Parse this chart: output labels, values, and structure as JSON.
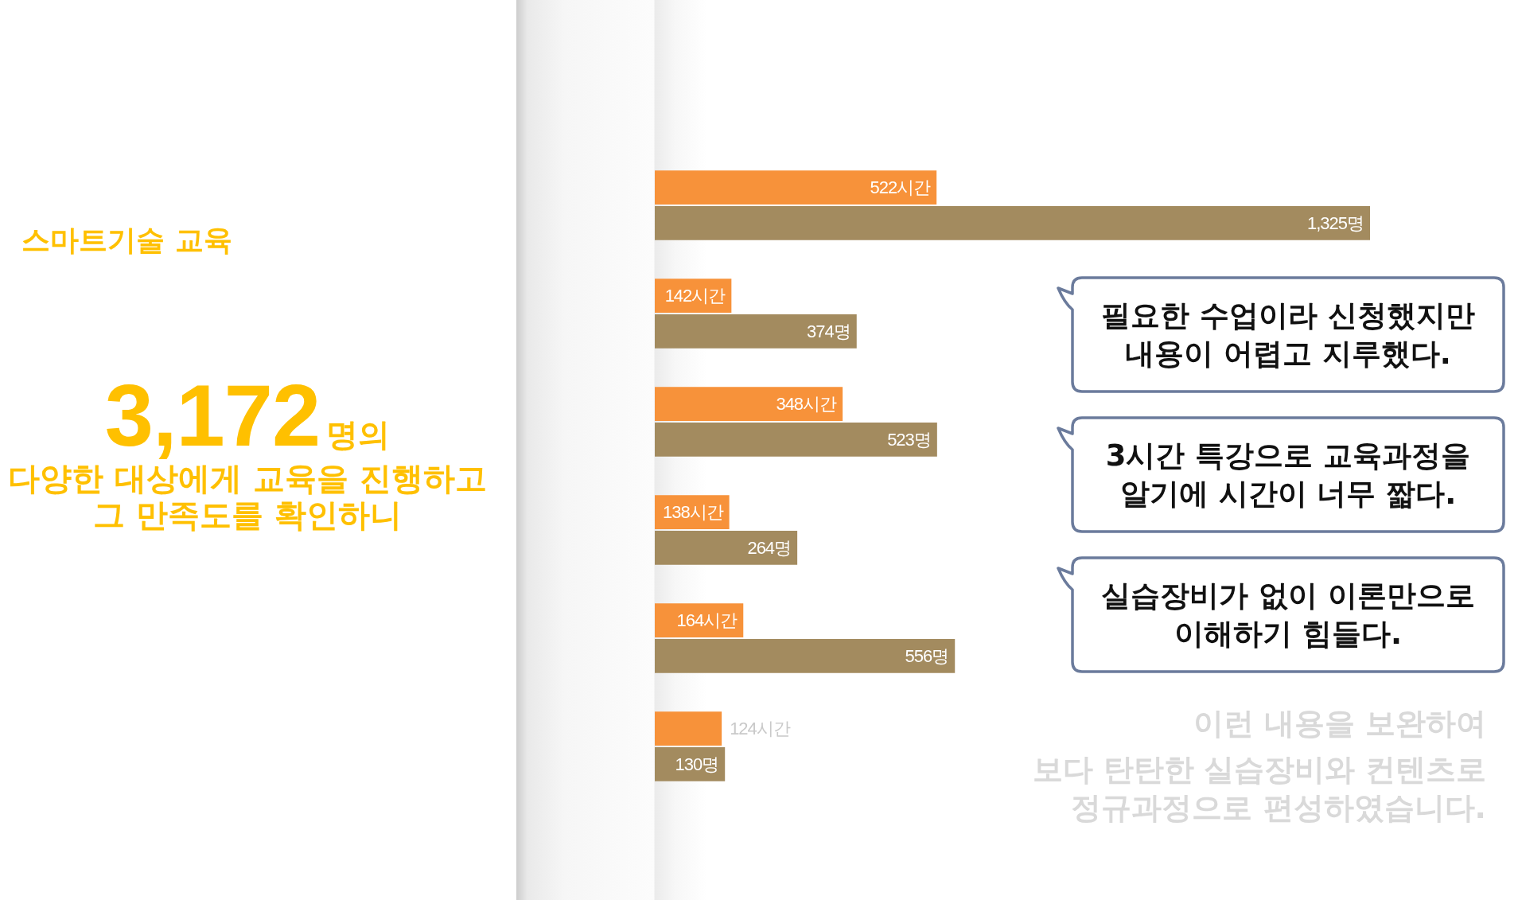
{
  "chart_data": {
    "type": "bar",
    "orientation": "horizontal",
    "title": "스마트기술 교육",
    "categories": [
      null,
      null,
      null,
      null,
      null,
      null
    ],
    "series": [
      {
        "color": "#f7923a",
        "values": [
          522,
          142,
          348,
          138,
          164,
          124
        ],
        "value_labels": [
          "522시간",
          "142시간",
          "348시간",
          "138시간",
          "164시간",
          "124시간"
        ]
      },
      {
        "color": "#a38b5f",
        "values": [
          1325,
          374,
          523,
          264,
          556,
          130
        ],
        "value_labels": [
          "1,325명",
          "374명",
          "523명",
          "264명",
          "556명",
          "130명"
        ]
      }
    ],
    "tick_labels": false,
    "annotations": [
      "3,172",
      "명의",
      "다양한 대상에게 교육을 진행하고",
      "그 만족도를 확인하니",
      "필요한 수업이라 신청했지만\n내용이 어렵고 지루했다.",
      "3시간 특강으로 교육과정을\n알기에 시간이 너무 짧다.",
      "실습장비가 없이 이론만으로\n이해하기 힘들다.",
      "이런 내용을 보완하여",
      "보다 탄탄한",
      "실습장비와 컨텐츠로",
      "정규과정으로 편성하였습니다."
    ]
  }
}
